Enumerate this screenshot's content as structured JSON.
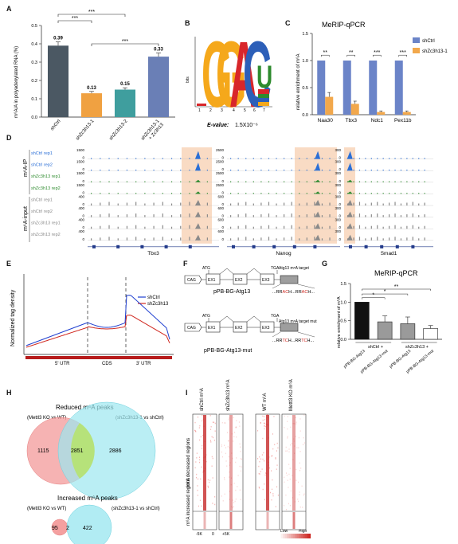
{
  "panels": {
    "A": "A",
    "B": "B",
    "C": "C",
    "D": "D",
    "E": "E",
    "F": "F",
    "G": "G",
    "H": "H",
    "I": "I"
  },
  "panelA": {
    "ylabel": "m⁶A/A in polyadenylated RNA (%)",
    "sig": [
      "***",
      "***",
      "***"
    ],
    "chart_data": {
      "type": "bar",
      "categories": [
        "shCtrl",
        "shZc3h13-1",
        "shZc3h13-2",
        "shZc3h13-1 + Zc3h13"
      ],
      "values": [
        0.39,
        0.13,
        0.15,
        0.33
      ],
      "value_labels": [
        "0.39",
        "0.13",
        "0.15",
        "0.33"
      ],
      "yticks": [
        "0.0",
        "0.1",
        "0.2",
        "0.3",
        "0.4",
        "0.5"
      ],
      "ylim": [
        0,
        0.5
      ],
      "colors": [
        "#4b5863",
        "#f0a141",
        "#3f9e9e",
        "#6a7fb6"
      ]
    }
  },
  "panelB": {
    "ylabel": "bits",
    "evalue_label": "E-value:",
    "evalue": "1.5X10⁻⁶",
    "letters": [
      "G",
      "G",
      "A",
      "C",
      "U"
    ],
    "positions": [
      "1",
      "2",
      "3",
      "4",
      "5",
      "6",
      "7"
    ]
  },
  "panelC": {
    "title": "MeRIP-qPCR",
    "ylabel": "relative enrichment of m⁶A",
    "sig": [
      "**",
      "**",
      "***",
      "***"
    ],
    "chart_data": {
      "type": "bar",
      "categories": [
        "Naa30",
        "Tbx3",
        "Ndc1",
        "Pex11b"
      ],
      "series": [
        {
          "name": "shCtrl",
          "values": [
            1,
            1,
            1,
            1
          ],
          "color": "#6b84c8"
        },
        {
          "name": "shZc3h13-1",
          "values": [
            0.33,
            0.2,
            0.05,
            0.05
          ],
          "color": "#f2a84c"
        }
      ],
      "yticks": [
        "0.0",
        "0.5",
        "1.0",
        "1.5"
      ],
      "ylim": [
        0,
        1.5
      ]
    }
  },
  "panelD": {
    "groups": [
      "m⁶A-IP",
      "m⁶A-input"
    ],
    "tracks": [
      {
        "label": "shCtrl rep1",
        "color": "#2b6fd6"
      },
      {
        "label": "shCtrl rep2",
        "color": "#2b6fd6"
      },
      {
        "label": "shZc3h13 rep1",
        "color": "#2e8b2e"
      },
      {
        "label": "shZc3h13 rep2",
        "color": "#2e8b2e"
      },
      {
        "label": "shCtrl rep1",
        "color": "#8a8a8a"
      },
      {
        "label": "shCtrl rep2",
        "color": "#8a8a8a"
      },
      {
        "label": "shZc3h13 rep1",
        "color": "#8a8a8a"
      },
      {
        "label": "shZc3h13 rep2",
        "color": "#8a8a8a"
      }
    ],
    "genes": [
      "Tbx3",
      "Nanog",
      "Smad1"
    ],
    "scales": [
      [
        "1500",
        "0",
        "1500",
        "0",
        "1500",
        "0",
        "1500",
        "0",
        "400",
        "0",
        "400",
        "0",
        "400",
        "0",
        "400",
        "0"
      ],
      [
        "2500",
        "0",
        "2500",
        "0",
        "2500",
        "0",
        "2500",
        "0",
        "600",
        "0",
        "600",
        "0",
        "600",
        "0",
        "600",
        "0"
      ],
      [
        "300",
        "0",
        "300",
        "0",
        "300",
        "0",
        "300",
        "0",
        "300",
        "0",
        "300",
        "0",
        "300",
        "0",
        "300",
        "0"
      ]
    ]
  },
  "panelE": {
    "ylabel": "Normalized tag density",
    "regions": [
      "5' UTR",
      "CDS",
      "3' UTR"
    ],
    "chart_data": {
      "type": "line",
      "series": [
        {
          "name": "shCtrl",
          "color": "#1f3fd0"
        },
        {
          "name": "shZc3h13",
          "color": "#d0271f"
        }
      ]
    }
  },
  "panelF": {
    "construct1": {
      "name": "pPB-BG-Atg13",
      "elements": [
        "CAG",
        "EX1",
        "EX2",
        "EX3"
      ],
      "atg": "ATG",
      "tga": "TGA",
      "target": "Atg13 m⁶A target",
      "motif_pre": "...RR",
      "motif_a1": "AC",
      "motif_mid": "H...RR",
      "motif_a2": "AC",
      "motif_post": "H..."
    },
    "construct2": {
      "name": "pPB-BG-Atg13-mut",
      "elements": [
        "CAG",
        "EX1",
        "EX2",
        "EX3"
      ],
      "atg": "ATG",
      "tga": "TGA",
      "target": "Atg13 m⁶A target mut",
      "motif_pre": "...RR",
      "motif_a1": "TC",
      "motif_mid": "H...RR",
      "motif_a2": "TC",
      "motif_post": "H..."
    }
  },
  "panelG": {
    "title": "MeRIP-qPCR",
    "ylabel": "relative enrichment of m⁶A",
    "group_labels": [
      "shCtrl +",
      "shZc3h13 +"
    ],
    "sig": [
      "*",
      "*",
      "**"
    ],
    "chart_data": {
      "type": "bar",
      "categories": [
        "pPB-BG-Atg13",
        "pPB-BG-Atg13-mut",
        "pPB-BG-Atg13",
        "pPB-BG-Atg13-mut"
      ],
      "values": [
        1.0,
        0.47,
        0.42,
        0.29
      ],
      "errors": [
        0,
        0.16,
        0.18,
        0.08
      ],
      "yticks": [
        "0.0",
        "0.5",
        "1.0",
        "1.5"
      ],
      "ylim": [
        0,
        1.5
      ],
      "colors": [
        "#111111",
        "#9a9a9a",
        "#9a9a9a",
        "#ffffff"
      ]
    }
  },
  "panelH": {
    "title1": "Reduced m⁶A peaks",
    "left1": "(Mettl3 KO vs WT)",
    "right1": "(shZc3h13-1 vs shCtrl)",
    "counts1": [
      "1115",
      "2851",
      "2886"
    ],
    "title2": "Increased m⁶A peaks",
    "left2": "(Mettl3 KO vs WT)",
    "right2": "(shZc3h13-1 vs shCtrl)",
    "counts2": [
      "95",
      "2",
      "422"
    ]
  },
  "panelI": {
    "columns": [
      "shCtrl m⁶A",
      "shZc3h13 m⁶A",
      "WT m⁶A",
      "Mettl3 KO m⁶A"
    ],
    "row_labels": [
      "m⁶A decreased regions",
      "m⁶A increased regions"
    ],
    "xticks": [
      "-5K",
      "0",
      "+5K"
    ],
    "legend": [
      "Low",
      "High"
    ]
  }
}
